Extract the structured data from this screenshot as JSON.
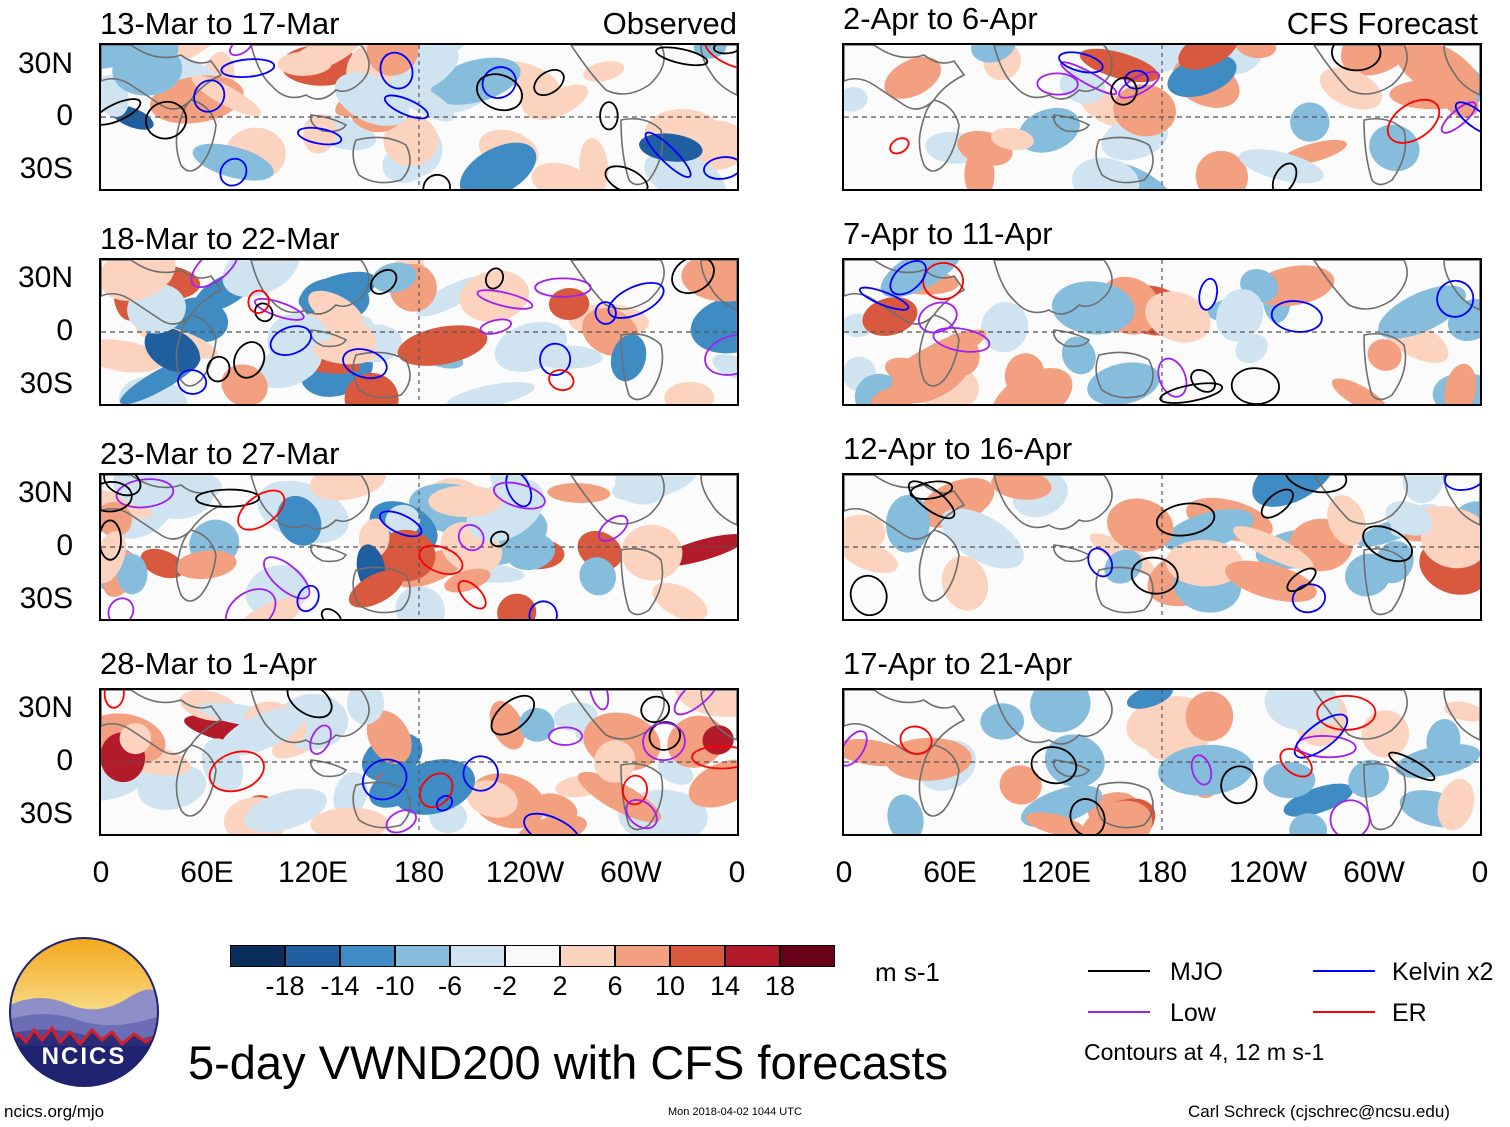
{
  "panels": [
    {
      "title": "13-Mar to 17-Mar",
      "tag": "Observed"
    },
    {
      "title": "18-Mar to 22-Mar",
      "tag": ""
    },
    {
      "title": "23-Mar to 27-Mar",
      "tag": ""
    },
    {
      "title": "28-Mar to 1-Apr",
      "tag": ""
    },
    {
      "title": "2-Apr to 6-Apr",
      "tag": "CFS Forecast"
    },
    {
      "title": "7-Apr to 11-Apr",
      "tag": ""
    },
    {
      "title": "12-Apr to 16-Apr",
      "tag": ""
    },
    {
      "title": "17-Apr to 21-Apr",
      "tag": ""
    }
  ],
  "y_axis": {
    "labels": [
      "30N",
      "0",
      "30S"
    ]
  },
  "x_axis": {
    "labels": [
      "0",
      "60E",
      "120E",
      "180",
      "120W",
      "60W",
      "0"
    ]
  },
  "colorbar": {
    "colors": [
      "#0b2d5c",
      "#1f5fa0",
      "#3f8cc4",
      "#86bddd",
      "#cfe4f0",
      "#f8f8f8",
      "#fbd3bf",
      "#f2a07f",
      "#d9593f",
      "#b31a2a",
      "#6a0018"
    ],
    "labels": [
      "-18",
      "-14",
      "-10",
      "-6",
      "-2",
      "2",
      "6",
      "10",
      "14",
      "18"
    ],
    "unit": "m s-1"
  },
  "legend": {
    "items": [
      {
        "label": "MJO",
        "color": "#000000"
      },
      {
        "label": "Kelvin x2",
        "color": "#0000ff"
      },
      {
        "label": "Low",
        "color": "#a020f0"
      },
      {
        "label": "ER",
        "color": "#ff0000"
      }
    ],
    "note": "Contours at 4, 12 m s-1"
  },
  "logo": {
    "text": "NCICS"
  },
  "main_title": "5-day VWND200 with CFS forecasts",
  "footer": {
    "left": "ncics.org/mjo",
    "center": "Mon 2018-04-02 1044 UTC",
    "right": "Carl Schreck (cjschrec@ncsu.edu)"
  }
}
